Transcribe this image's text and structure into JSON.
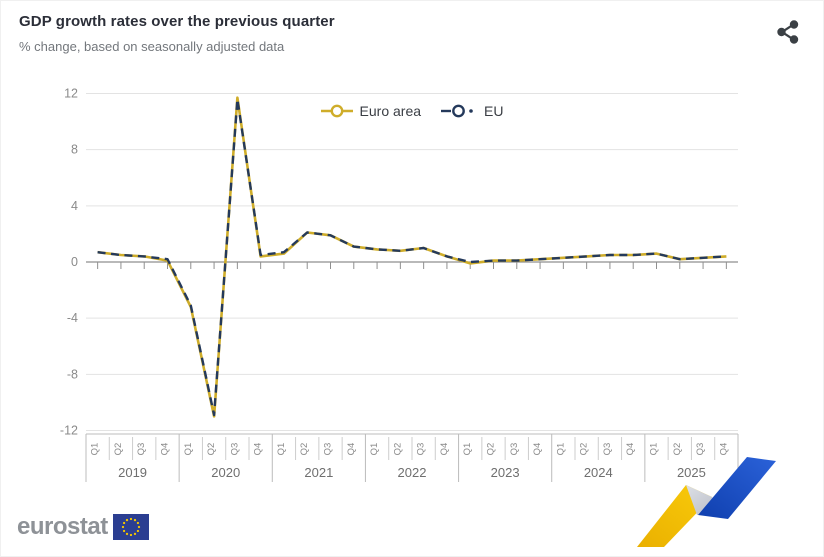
{
  "header": {
    "title": "GDP growth rates over the previous quarter",
    "subtitle": "% change, based on seasonally adjusted data"
  },
  "legend": {
    "euro_area_label": "Euro area",
    "eu_label": "EU"
  },
  "footer": {
    "logo_text": "eurostat"
  },
  "colors": {
    "euro_area": "#cfad2a",
    "eu": "#24395b",
    "grid": "#e3e3e3",
    "zero_axis": "#8f8f8f",
    "axis_text": "#8a8a8a",
    "year_text": "#6f6f6f",
    "table_line": "#bcbcbc",
    "share_icon": "#3b4045",
    "logo_flag_blue": "#2b3e91",
    "logo_star_yellow": "#f3c500",
    "ribbon_yellow_light": "#f9cb0b",
    "ribbon_yellow_dark": "#eab000",
    "ribbon_blue_light": "#2b62d9",
    "ribbon_blue_dark": "#0f3fae",
    "ribbon_gray_light": "#dde0e6",
    "ribbon_gray_dark": "#b7bac4"
  },
  "chart_data": {
    "type": "line",
    "title": "GDP growth rates over the previous quarter",
    "subtitle": "% change, based on seasonally adjusted data",
    "grid": true,
    "legend_position": "top-center",
    "ylim": [
      -12,
      12
    ],
    "yticks": [
      12,
      8,
      4,
      0,
      -4,
      -8,
      -12
    ],
    "quarters": [
      "Q1",
      "Q2",
      "Q3",
      "Q4"
    ],
    "years": [
      "2019",
      "2020",
      "2021",
      "2022",
      "2023",
      "2024",
      "2025"
    ],
    "categories": [
      "2019 Q1",
      "2019 Q2",
      "2019 Q3",
      "2019 Q4",
      "2020 Q1",
      "2020 Q2",
      "2020 Q3",
      "2020 Q4",
      "2021 Q1",
      "2021 Q2",
      "2021 Q3",
      "2021 Q4",
      "2022 Q1",
      "2022 Q2",
      "2022 Q3",
      "2022 Q4",
      "2023 Q1",
      "2023 Q2",
      "2023 Q3",
      "2023 Q4",
      "2024 Q1",
      "2024 Q2",
      "2024 Q3",
      "2024 Q4",
      "2025 Q1",
      "2025 Q2",
      "2025 Q3",
      "2025 Q4"
    ],
    "series": [
      {
        "name": "Euro area",
        "style": "solid",
        "values": [
          0.7,
          0.5,
          0.4,
          0.1,
          -3.2,
          -11.0,
          11.7,
          0.4,
          0.6,
          2.1,
          1.9,
          1.1,
          0.9,
          0.8,
          1.0,
          0.4,
          -0.1,
          0.1,
          0.1,
          0.2,
          0.3,
          0.4,
          0.5,
          0.5,
          0.6,
          0.2,
          0.3,
          0.4
        ]
      },
      {
        "name": "EU",
        "style": "dash-dot",
        "values": [
          0.7,
          0.5,
          0.4,
          0.2,
          -3.1,
          -10.9,
          11.6,
          0.5,
          0.7,
          2.1,
          1.9,
          1.1,
          0.9,
          0.8,
          1.0,
          0.4,
          0.0,
          0.1,
          0.1,
          0.2,
          0.3,
          0.4,
          0.5,
          0.5,
          0.6,
          0.2,
          0.3,
          0.4
        ]
      }
    ]
  }
}
